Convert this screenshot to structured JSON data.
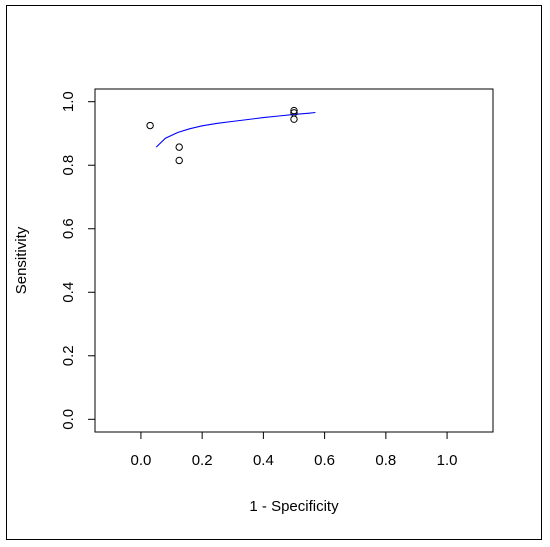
{
  "chart_data": {
    "type": "scatter",
    "title": "",
    "xlabel": "1 - Specificity",
    "ylabel": "Sensitivity",
    "xlim": [
      -0.15,
      1.15
    ],
    "ylim": [
      -0.04,
      1.04
    ],
    "x_ticks": [
      0.0,
      0.2,
      0.4,
      0.6,
      0.8,
      1.0
    ],
    "x_tick_labels": [
      "0.0",
      "0.2",
      "0.4",
      "0.6",
      "0.8",
      "1.0"
    ],
    "y_ticks": [
      0.0,
      0.2,
      0.4,
      0.6,
      0.8,
      1.0
    ],
    "y_tick_labels": [
      "0.0",
      "0.2",
      "0.4",
      "0.6",
      "0.8",
      "1.0"
    ],
    "grid": false,
    "legend": "none",
    "points": [
      {
        "x": 0.03,
        "y": 0.925
      },
      {
        "x": 0.125,
        "y": 0.857
      },
      {
        "x": 0.125,
        "y": 0.815
      },
      {
        "x": 0.5,
        "y": 0.972
      },
      {
        "x": 0.5,
        "y": 0.965
      },
      {
        "x": 0.5,
        "y": 0.945
      }
    ],
    "curve": {
      "color": "#0000ff",
      "points": [
        {
          "x": 0.05,
          "y": 0.857
        },
        {
          "x": 0.08,
          "y": 0.885
        },
        {
          "x": 0.12,
          "y": 0.903
        },
        {
          "x": 0.16,
          "y": 0.915
        },
        {
          "x": 0.2,
          "y": 0.924
        },
        {
          "x": 0.25,
          "y": 0.932
        },
        {
          "x": 0.3,
          "y": 0.938
        },
        {
          "x": 0.35,
          "y": 0.944
        },
        {
          "x": 0.4,
          "y": 0.95
        },
        {
          "x": 0.45,
          "y": 0.955
        },
        {
          "x": 0.5,
          "y": 0.96
        },
        {
          "x": 0.55,
          "y": 0.964
        },
        {
          "x": 0.57,
          "y": 0.966
        }
      ]
    },
    "point_color": "#000000"
  }
}
